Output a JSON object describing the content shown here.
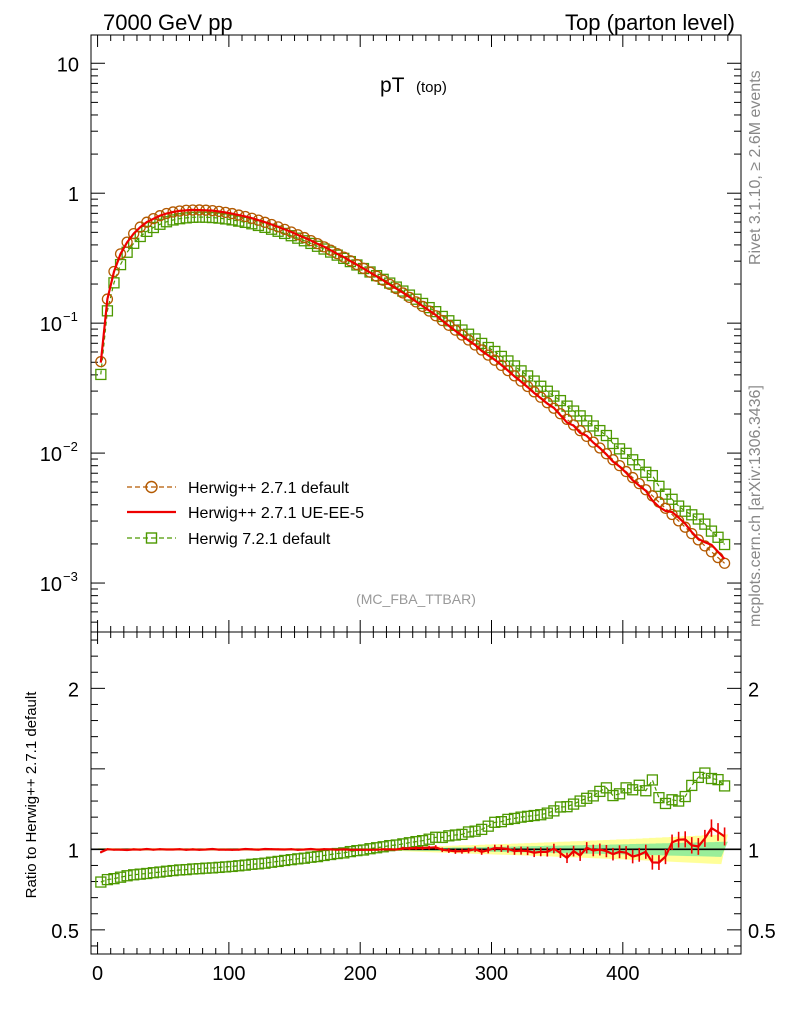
{
  "header": {
    "left": "7000 GeV pp",
    "right": "Top (parton level)"
  },
  "title_main": "pT",
  "title_sub": "(top)",
  "side_text_rivet": "Rivet 3.1.10, ≥ 2.6M events",
  "side_text_mcplots": "mcplots.cern.ch [arXiv:1306.3436]",
  "analysis_tag": "(MC_FBA_TTBAR)",
  "ratio_ylabel": "Ratio to Herwig++ 2.7.1 default",
  "top_y_ticks": [
    {
      "label": "10",
      "value": 10,
      "sup": ""
    },
    {
      "label": "1",
      "value": 1,
      "sup": ""
    },
    {
      "label": "10",
      "value": 0.1,
      "sup": "−1"
    },
    {
      "label": "10",
      "value": 0.01,
      "sup": "−2"
    },
    {
      "label": "10",
      "value": 0.001,
      "sup": "−3"
    }
  ],
  "ratio_y_ticks": [
    "2",
    "1",
    "0.5"
  ],
  "ratio_y_tick_values": [
    2,
    1,
    0.5
  ],
  "x_ticks": [
    "0",
    "100",
    "200",
    "300",
    "400"
  ],
  "x_tick_values": [
    0,
    100,
    200,
    300,
    400
  ],
  "legend": [
    {
      "label": "Herwig++ 2.7.1 default",
      "color": "#b35900",
      "style": "dashed-circle"
    },
    {
      "label": "Herwig++ 2.7.1 UE-EE-5",
      "color": "#ee0000",
      "style": "solid"
    },
    {
      "label": "Herwig 7.2.1 default",
      "color": "#4d9900",
      "style": "dashed-square"
    }
  ],
  "chart_data": {
    "type": "line",
    "x": [
      2.5,
      7.5,
      12.5,
      17.5,
      22.5,
      27.5,
      32.5,
      37.5,
      42.5,
      47.5,
      52.5,
      57.5,
      62.5,
      67.5,
      72.5,
      77.5,
      82.5,
      87.5,
      92.5,
      97.5,
      102.5,
      107.5,
      112.5,
      117.5,
      122.5,
      127.5,
      132.5,
      137.5,
      142.5,
      147.5,
      152.5,
      157.5,
      162.5,
      167.5,
      172.5,
      177.5,
      182.5,
      187.5,
      192.5,
      197.5,
      202.5,
      207.5,
      212.5,
      217.5,
      222.5,
      227.5,
      232.5,
      237.5,
      242.5,
      247.5,
      252.5,
      257.5,
      262.5,
      267.5,
      272.5,
      277.5,
      282.5,
      287.5,
      292.5,
      297.5,
      302.5,
      307.5,
      312.5,
      317.5,
      322.5,
      327.5,
      332.5,
      337.5,
      342.5,
      347.5,
      352.5,
      357.5,
      362.5,
      367.5,
      372.5,
      377.5,
      382.5,
      387.5,
      392.5,
      397.5,
      402.5,
      407.5,
      412.5,
      417.5,
      422.5,
      427.5,
      432.5,
      437.5,
      442.5,
      447.5,
      452.5,
      457.5,
      462.5,
      467.5,
      472.5,
      477.5
    ],
    "xlim": [
      -5,
      490
    ],
    "ylim_top": [
      0.00042,
      16.5
    ],
    "ylim_ratio": [
      0.35,
      2.35
    ],
    "top_series": [
      {
        "name": "Herwig++ 2.7.1 default",
        "values": [
          0.0506,
          0.1532,
          0.2497,
          0.3413,
          0.4201,
          0.4887,
          0.5487,
          0.5982,
          0.6371,
          0.6712,
          0.6983,
          0.7173,
          0.7298,
          0.7391,
          0.743,
          0.7435,
          0.7401,
          0.734,
          0.7244,
          0.7118,
          0.6972,
          0.6791,
          0.6615,
          0.6416,
          0.6204,
          0.5972,
          0.5741,
          0.5507,
          0.5268,
          0.5032,
          0.4791,
          0.4556,
          0.4318,
          0.4091,
          0.3864,
          0.3642,
          0.3428,
          0.3222,
          0.3018,
          0.2827,
          0.2643,
          0.2467,
          0.2298,
          0.2139,
          0.1988,
          0.1845,
          0.1708,
          0.1579,
          0.1458,
          0.1345,
          0.1239,
          0.114,
          0.1048,
          0.09626,
          0.08832,
          0.08098,
          0.07419,
          0.0679,
          0.06211,
          0.05678,
          0.05187,
          0.04733,
          0.04314,
          0.03931,
          0.03579,
          0.03256,
          0.02961,
          0.0269,
          0.02442,
          0.02215,
          0.02007,
          0.01817,
          0.01645,
          0.01488,
          0.01345,
          0.01214,
          0.01095,
          0.00988,
          0.00889,
          0.00801,
          0.00721,
          0.00648,
          0.00582,
          0.00522,
          0.00469,
          0.0042,
          0.00376,
          0.00337,
          0.00301,
          0.00269,
          0.0024,
          0.00215,
          0.00193,
          0.00174,
          0.00157,
          0.00142
        ]
      },
      {
        "name": "Herwig++ 2.7.1 UE-EE-5",
        "values": [
          0.0497,
          0.1534,
          0.2491,
          0.3406,
          0.4184,
          0.4885,
          0.5475,
          0.5996,
          0.6356,
          0.6716,
          0.6976,
          0.7165,
          0.7308,
          0.7371,
          0.7433,
          0.7411,
          0.7393,
          0.7351,
          0.723,
          0.7104,
          0.6953,
          0.678,
          0.6627,
          0.6419,
          0.6194,
          0.5985,
          0.5746,
          0.5508,
          0.5262,
          0.5039,
          0.4779,
          0.455,
          0.4325,
          0.4082,
          0.3868,
          0.3641,
          0.342,
          0.3222,
          0.301,
          0.2819,
          0.2635,
          0.2459,
          0.2293,
          0.2138,
          0.1988,
          0.1843,
          0.1718,
          0.1589,
          0.1469,
          0.1355,
          0.1252,
          0.1155,
          0.1045,
          0.09559,
          0.08722,
          0.08006,
          0.07359,
          0.06797,
          0.06116,
          0.05651,
          0.05228,
          0.04762,
          0.04323,
          0.03891,
          0.03551,
          0.03223,
          0.02898,
          0.02649,
          0.02404,
          0.02226,
          0.01962,
          0.01721,
          0.01627,
          0.01432,
          0.01359,
          0.01205,
          0.01094,
          0.00977,
          0.00862,
          0.00789,
          0.00706,
          0.00619,
          0.00562,
          0.00514,
          0.00431,
          0.00386,
          0.00359,
          0.00352,
          0.00319,
          0.00286,
          0.00246,
          0.00219,
          0.00206,
          0.00197,
          0.00174,
          0.00153
        ]
      },
      {
        "name": "Herwig 7.2.1 default",
        "values": [
          0.0403,
          0.1244,
          0.2043,
          0.2822,
          0.3512,
          0.4114,
          0.4644,
          0.5085,
          0.5445,
          0.5767,
          0.603,
          0.6225,
          0.6364,
          0.6461,
          0.6524,
          0.6545,
          0.6534,
          0.6495,
          0.6432,
          0.6342,
          0.6232,
          0.6099,
          0.5964,
          0.5818,
          0.5648,
          0.5459,
          0.5283,
          0.5094,
          0.4904,
          0.4709,
          0.4508,
          0.4306,
          0.4108,
          0.3905,
          0.3719,
          0.3525,
          0.3338,
          0.3152,
          0.2977,
          0.2804,
          0.2632,
          0.2477,
          0.2321,
          0.2174,
          0.2034,
          0.1895,
          0.1766,
          0.1644,
          0.1528,
          0.1418,
          0.1317,
          0.1226,
          0.1126,
          0.1043,
          0.0962,
          0.08853,
          0.0822,
          0.07558,
          0.06981,
          0.06494,
          0.06056,
          0.05547,
          0.05118,
          0.04684,
          0.04294,
          0.03924,
          0.03584,
          0.03269,
          0.02993,
          0.02745,
          0.02535,
          0.02299,
          0.02107,
          0.01934,
          0.01771,
          0.01617,
          0.0149,
          0.01365,
          0.01186,
          0.01078,
          0.00996,
          0.00888,
          0.00814,
          0.00712,
          0.00671,
          0.00555,
          0.00483,
          0.00441,
          0.00391,
          0.00357,
          0.00335,
          0.00311,
          0.00284,
          0.00251,
          0.00225,
          0.00198
        ]
      }
    ],
    "ratio_series": [
      {
        "name": "Herwig++ 2.7.1 UE-EE-5",
        "values": [
          0.982,
          1.001,
          0.998,
          0.998,
          0.996,
          1.0,
          0.998,
          1.002,
          0.998,
          1.001,
          0.999,
          0.999,
          1.001,
          0.997,
          1.0,
          0.997,
          0.999,
          1.002,
          0.998,
          0.998,
          0.997,
          0.998,
          1.002,
          1.0,
          0.998,
          1.002,
          1.001,
          1.0,
          0.999,
          1.001,
          0.997,
          0.999,
          1.002,
          0.998,
          1.001,
          1.0,
          0.998,
          1.0,
          0.997,
          0.997,
          0.997,
          0.997,
          0.998,
          1.0,
          1.0,
          0.999,
          1.006,
          1.006,
          1.008,
          1.008,
          1.01,
          1.013,
          0.997,
          0.993,
          0.988,
          0.989,
          0.992,
          1.001,
          0.985,
          0.995,
          1.008,
          1.006,
          1.002,
          0.99,
          0.992,
          0.99,
          0.979,
          0.985,
          0.984,
          1.005,
          0.977,
          0.947,
          0.989,
          0.962,
          1.01,
          0.993,
          0.999,
          0.989,
          0.97,
          0.985,
          0.979,
          0.955,
          0.966,
          0.985,
          0.919,
          0.918,
          0.955,
          1.044,
          1.06,
          1.062,
          1.025,
          1.018,
          1.068,
          1.132,
          1.108,
          1.08
        ]
      },
      {
        "name": "Herwig 7.2.1 default",
        "values": [
          0.797,
          0.812,
          0.818,
          0.827,
          0.836,
          0.842,
          0.846,
          0.85,
          0.855,
          0.859,
          0.864,
          0.868,
          0.872,
          0.874,
          0.878,
          0.88,
          0.883,
          0.885,
          0.888,
          0.891,
          0.894,
          0.898,
          0.902,
          0.907,
          0.91,
          0.914,
          0.92,
          0.925,
          0.931,
          0.936,
          0.941,
          0.945,
          0.951,
          0.955,
          0.962,
          0.968,
          0.974,
          0.978,
          0.986,
          0.992,
          0.996,
          1.004,
          1.01,
          1.016,
          1.023,
          1.027,
          1.034,
          1.041,
          1.048,
          1.054,
          1.063,
          1.075,
          1.074,
          1.084,
          1.089,
          1.093,
          1.108,
          1.113,
          1.124,
          1.144,
          1.168,
          1.172,
          1.186,
          1.192,
          1.2,
          1.205,
          1.21,
          1.215,
          1.225,
          1.239,
          1.263,
          1.265,
          1.281,
          1.3,
          1.317,
          1.332,
          1.36,
          1.382,
          1.334,
          1.345,
          1.382,
          1.37,
          1.398,
          1.364,
          1.431,
          1.321,
          1.285,
          1.308,
          1.3,
          1.328,
          1.397,
          1.447,
          1.474,
          1.44,
          1.433,
          1.394
        ]
      }
    ],
    "ratio_error_bars": [
      0.006,
      0.006,
      0.006,
      0.006,
      0.006,
      0.006,
      0.006,
      0.006,
      0.006,
      0.006,
      0.006,
      0.006,
      0.006,
      0.006,
      0.006,
      0.006,
      0.006,
      0.006,
      0.006,
      0.006,
      0.006,
      0.006,
      0.006,
      0.006,
      0.006,
      0.006,
      0.006,
      0.006,
      0.006,
      0.006,
      0.006,
      0.006,
      0.006,
      0.006,
      0.006,
      0.006,
      0.006,
      0.006,
      0.006,
      0.006,
      0.006,
      0.006,
      0.006,
      0.006,
      0.006,
      0.006,
      0.01,
      0.01,
      0.011,
      0.012,
      0.012,
      0.013,
      0.014,
      0.015,
      0.016,
      0.016,
      0.017,
      0.018,
      0.019,
      0.02,
      0.021,
      0.022,
      0.023,
      0.024,
      0.025,
      0.026,
      0.027,
      0.028,
      0.029,
      0.03,
      0.031,
      0.032,
      0.033,
      0.034,
      0.035,
      0.036,
      0.037,
      0.038,
      0.039,
      0.04,
      0.041,
      0.042,
      0.043,
      0.044,
      0.045,
      0.046,
      0.047,
      0.048,
      0.049,
      0.05,
      0.051,
      0.052,
      0.053,
      0.054,
      0.055,
      0.056
    ],
    "ratio_band_green": [
      0.004,
      0.004,
      0.004,
      0.004,
      0.004,
      0.004,
      0.004,
      0.004,
      0.004,
      0.004,
      0.004,
      0.004,
      0.004,
      0.004,
      0.004,
      0.004,
      0.004,
      0.004,
      0.004,
      0.004,
      0.004,
      0.004,
      0.004,
      0.004,
      0.004,
      0.004,
      0.004,
      0.004,
      0.004,
      0.004,
      0.004,
      0.004,
      0.004,
      0.004,
      0.004,
      0.004,
      0.004,
      0.004,
      0.004,
      0.004,
      0.004,
      0.004,
      0.004,
      0.004,
      0.004,
      0.004,
      0.006,
      0.007,
      0.008,
      0.009,
      0.009,
      0.01,
      0.01,
      0.011,
      0.012,
      0.012,
      0.013,
      0.014,
      0.014,
      0.015,
      0.016,
      0.016,
      0.017,
      0.018,
      0.019,
      0.019,
      0.02,
      0.021,
      0.022,
      0.022,
      0.023,
      0.024,
      0.025,
      0.026,
      0.027,
      0.027,
      0.028,
      0.029,
      0.03,
      0.031,
      0.032,
      0.033,
      0.034,
      0.035,
      0.036,
      0.037,
      0.038,
      0.039,
      0.04,
      0.041,
      0.042,
      0.043,
      0.044,
      0.045,
      0.046,
      0.047
    ],
    "ratio_band_yellow": [
      0.008,
      0.008,
      0.008,
      0.008,
      0.008,
      0.008,
      0.008,
      0.008,
      0.008,
      0.008,
      0.008,
      0.008,
      0.008,
      0.008,
      0.008,
      0.008,
      0.008,
      0.008,
      0.008,
      0.008,
      0.008,
      0.008,
      0.008,
      0.008,
      0.008,
      0.008,
      0.008,
      0.008,
      0.008,
      0.008,
      0.008,
      0.008,
      0.008,
      0.008,
      0.008,
      0.008,
      0.008,
      0.008,
      0.008,
      0.008,
      0.008,
      0.008,
      0.008,
      0.008,
      0.008,
      0.008,
      0.012,
      0.013,
      0.015,
      0.016,
      0.018,
      0.019,
      0.02,
      0.022,
      0.023,
      0.025,
      0.026,
      0.027,
      0.029,
      0.03,
      0.032,
      0.033,
      0.034,
      0.036,
      0.037,
      0.039,
      0.04,
      0.042,
      0.043,
      0.045,
      0.047,
      0.048,
      0.05,
      0.051,
      0.053,
      0.055,
      0.056,
      0.058,
      0.06,
      0.062,
      0.063,
      0.065,
      0.067,
      0.069,
      0.071,
      0.073,
      0.075,
      0.077,
      0.079,
      0.081,
      0.083,
      0.085,
      0.087,
      0.089,
      0.091,
      0.093
    ]
  }
}
